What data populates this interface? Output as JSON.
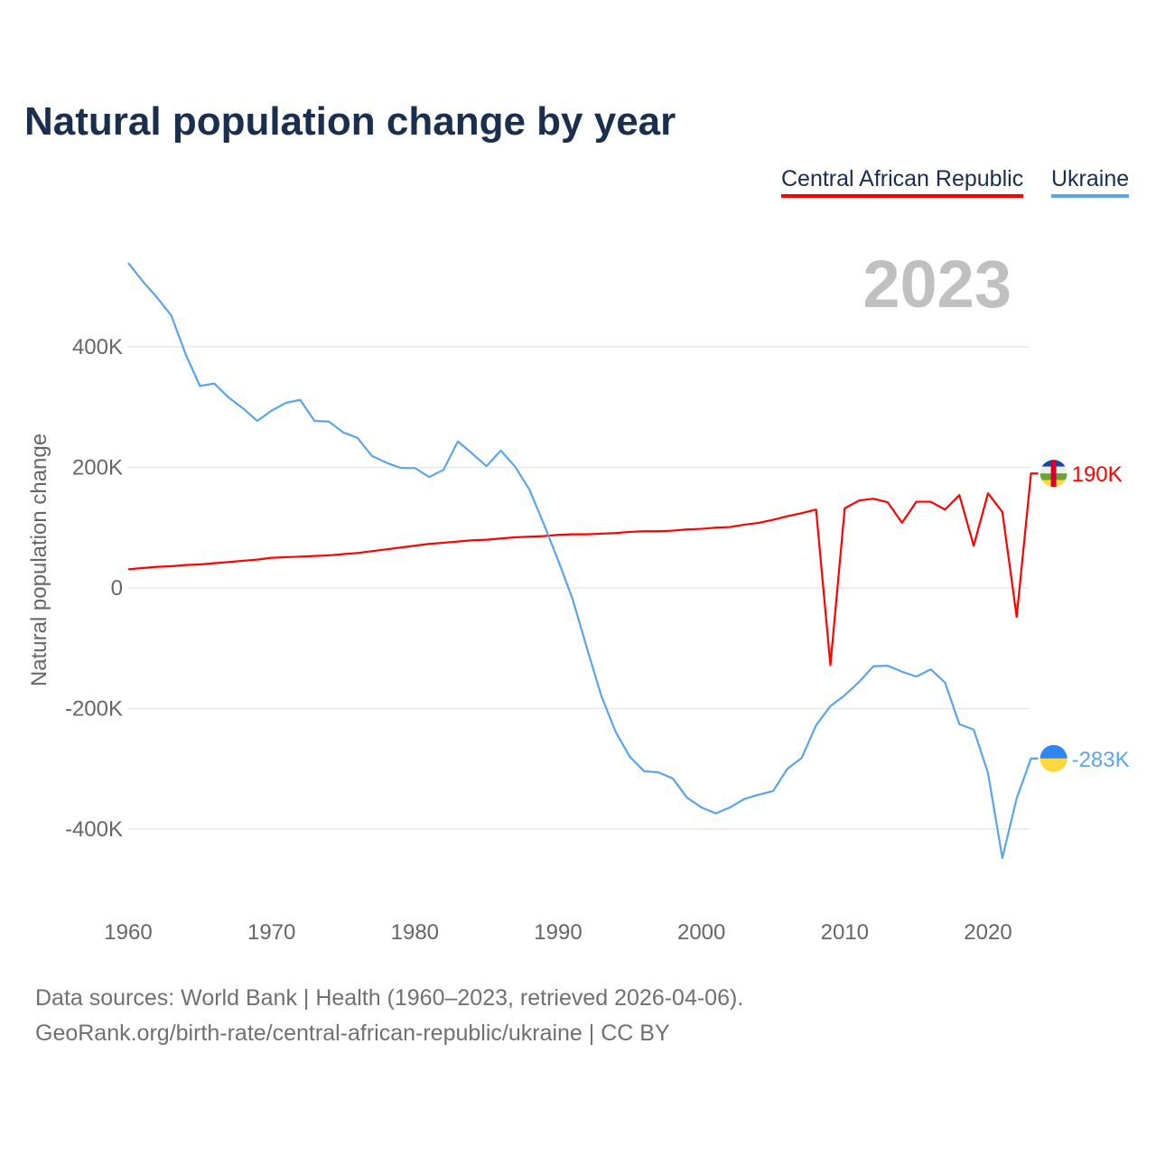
{
  "chart_data": {
    "type": "line",
    "title": "Natural population change by year",
    "xlabel": "",
    "ylabel": "Natural population change",
    "xlim": [
      1960,
      2023
    ],
    "ylim": [
      -500000,
      550000
    ],
    "x_ticks": [
      1960,
      1970,
      1980,
      1990,
      2000,
      2010,
      2020
    ],
    "y_ticks": [
      -400000,
      -200000,
      0,
      200000,
      400000
    ],
    "y_tick_labels": [
      "-400K",
      "-200K",
      "0",
      "200K",
      "400K"
    ],
    "grid": true,
    "legend_position": "top-right",
    "year_label": "2023",
    "x": [
      1960,
      1961,
      1962,
      1963,
      1964,
      1965,
      1966,
      1967,
      1968,
      1969,
      1970,
      1971,
      1972,
      1973,
      1974,
      1975,
      1976,
      1977,
      1978,
      1979,
      1980,
      1981,
      1982,
      1983,
      1984,
      1985,
      1986,
      1987,
      1988,
      1989,
      1990,
      1991,
      1992,
      1993,
      1994,
      1995,
      1996,
      1997,
      1998,
      1999,
      2000,
      2001,
      2002,
      2003,
      2004,
      2005,
      2006,
      2007,
      2008,
      2009,
      2010,
      2011,
      2012,
      2013,
      2014,
      2015,
      2016,
      2017,
      2018,
      2019,
      2020,
      2021,
      2022,
      2023
    ],
    "series": [
      {
        "name": "Central African Republic",
        "color": "#ff0000",
        "end_label": "190K",
        "values": [
          31000,
          33000,
          35000,
          36000,
          38000,
          39000,
          41000,
          43000,
          45000,
          47000,
          50000,
          51000,
          52000,
          53000,
          54000,
          56000,
          58000,
          61000,
          64000,
          67000,
          70000,
          73000,
          75000,
          77000,
          79000,
          80000,
          82000,
          84000,
          85000,
          86000,
          88000,
          89000,
          89000,
          90000,
          91000,
          93000,
          94000,
          94000,
          95000,
          97000,
          98000,
          100000,
          101000,
          105000,
          108000,
          113000,
          119000,
          124000,
          130000,
          -128000,
          132000,
          145000,
          148000,
          142000,
          108000,
          143000,
          143000,
          130000,
          154000,
          70000,
          157000,
          126000,
          -48000,
          190000
        ]
      },
      {
        "name": "Ukraine",
        "color": "#5aa5ea",
        "end_label": "-283K",
        "values": [
          539000,
          509000,
          482000,
          452000,
          388000,
          335000,
          339000,
          316000,
          298000,
          277000,
          294000,
          307000,
          312000,
          277000,
          276000,
          258000,
          249000,
          219000,
          208000,
          199000,
          199000,
          184000,
          196000,
          243000,
          223000,
          202000,
          228000,
          201000,
          163000,
          106000,
          46000,
          -18000,
          -99000,
          -178000,
          -238000,
          -280000,
          -304000,
          -306000,
          -316000,
          -348000,
          -364000,
          -374000,
          -364000,
          -350000,
          -343000,
          -337000,
          -300000,
          -282000,
          -228000,
          -196000,
          -178000,
          -156000,
          -130000,
          -129000,
          -139000,
          -147000,
          -135000,
          -157000,
          -226000,
          -235000,
          -307000,
          -448000,
          -349000,
          -283000
        ]
      }
    ]
  },
  "footer": {
    "line1": "Data sources: World Bank | Health (1960–2023, retrieved 2026-04-06).",
    "line2": "GeoRank.org/birth-rate/central-african-republic/ukraine | CC BY"
  }
}
